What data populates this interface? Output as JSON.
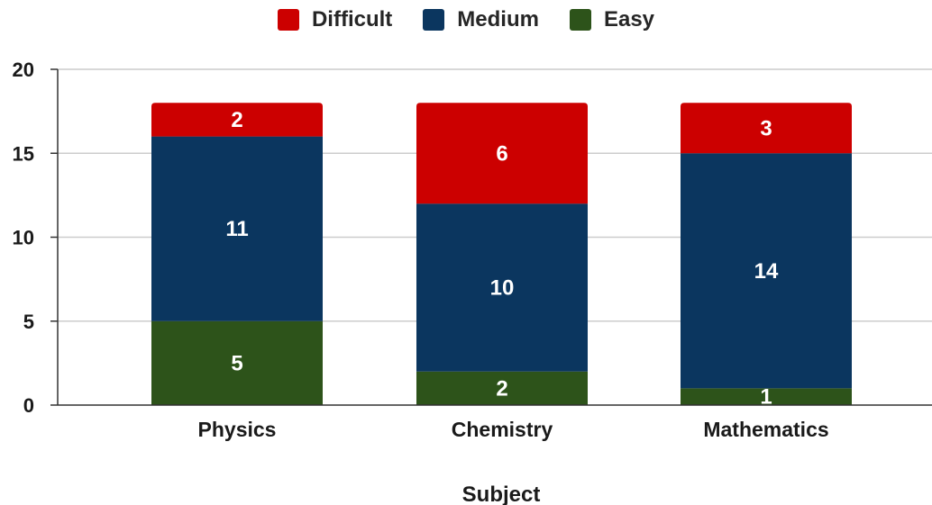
{
  "chart_data": {
    "type": "bar",
    "stacked": true,
    "categories": [
      "Physics",
      "Chemistry",
      "Mathematics"
    ],
    "series": [
      {
        "name": "Easy",
        "values": [
          5,
          2,
          1
        ],
        "color": "#2d531a"
      },
      {
        "name": "Medium",
        "values": [
          11,
          10,
          14
        ],
        "color": "#0b365f"
      },
      {
        "name": "Difficult",
        "values": [
          2,
          6,
          3
        ],
        "color": "#cc0000"
      }
    ],
    "legend_order": [
      "Difficult",
      "Medium",
      "Easy"
    ],
    "xlabel": "Subject",
    "ylabel": "",
    "ylim": [
      0,
      20
    ],
    "yticks": [
      0,
      5,
      10,
      15,
      20
    ],
    "grid": true,
    "legend_position": "top-center",
    "data_labels": true
  }
}
